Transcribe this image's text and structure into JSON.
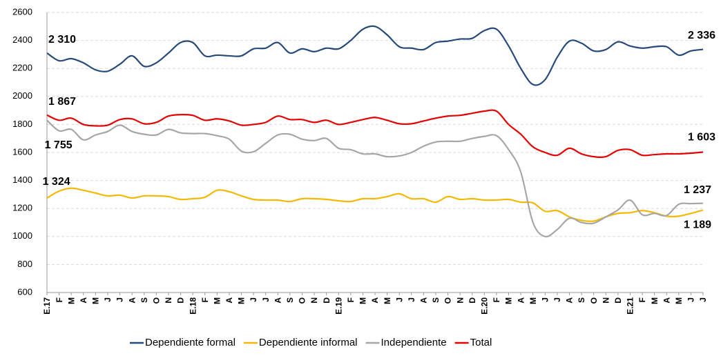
{
  "chart_data": {
    "type": "line",
    "categories": [
      "E.17",
      "F",
      "M",
      "A",
      "M",
      "J",
      "J",
      "A",
      "S",
      "O",
      "N",
      "D",
      "E.18",
      "F",
      "M",
      "A",
      "M",
      "J",
      "J",
      "A",
      "S",
      "O",
      "N",
      "D",
      "E.19",
      "F",
      "M",
      "A",
      "M",
      "J",
      "J",
      "A",
      "S",
      "O",
      "N",
      "D",
      "E.20",
      "F",
      "M",
      "A",
      "M",
      "J",
      "J",
      "A",
      "S",
      "O",
      "N",
      "D",
      "E.21",
      "F",
      "M",
      "A",
      "M",
      "J",
      "J"
    ],
    "ylim": [
      600,
      2600
    ],
    "yticks": [
      600,
      800,
      1000,
      1200,
      1400,
      1600,
      1800,
      2000,
      2200,
      2400,
      2600
    ],
    "grid": true,
    "series": [
      {
        "name": "Dependiente formal",
        "color": "#25497a",
        "values": [
          2310,
          2255,
          2270,
          2240,
          2190,
          2180,
          2230,
          2290,
          2215,
          2240,
          2310,
          2385,
          2385,
          2290,
          2295,
          2290,
          2290,
          2340,
          2345,
          2385,
          2310,
          2340,
          2320,
          2345,
          2340,
          2400,
          2480,
          2500,
          2440,
          2355,
          2345,
          2335,
          2385,
          2395,
          2410,
          2415,
          2470,
          2480,
          2360,
          2200,
          2085,
          2120,
          2280,
          2395,
          2380,
          2325,
          2335,
          2390,
          2360,
          2345,
          2355,
          2355,
          2295,
          2325,
          2336
        ],
        "value_labels": [
          "2 310",
          null,
          null,
          null,
          null,
          null,
          null,
          null,
          null,
          null,
          null,
          null,
          null,
          null,
          null,
          null,
          null,
          null,
          null,
          null,
          null,
          null,
          null,
          null,
          null,
          null,
          null,
          null,
          null,
          null,
          null,
          null,
          null,
          null,
          null,
          null,
          null,
          null,
          null,
          null,
          null,
          null,
          null,
          null,
          null,
          null,
          null,
          null,
          null,
          null,
          null,
          null,
          null,
          null,
          "2 336"
        ]
      },
      {
        "name": "Dependiente informal",
        "color": "#f5b800",
        "values": [
          1275,
          1324,
          1345,
          1330,
          1310,
          1290,
          1295,
          1275,
          1290,
          1290,
          1285,
          1265,
          1270,
          1280,
          1330,
          1320,
          1290,
          1265,
          1260,
          1260,
          1250,
          1270,
          1270,
          1265,
          1255,
          1250,
          1270,
          1270,
          1285,
          1305,
          1270,
          1270,
          1245,
          1285,
          1265,
          1270,
          1260,
          1260,
          1265,
          1245,
          1240,
          1180,
          1185,
          1140,
          1115,
          1110,
          1140,
          1165,
          1170,
          1185,
          1170,
          1145,
          1145,
          1165,
          1189
        ],
        "value_labels": [
          null,
          "1 324",
          null,
          null,
          null,
          null,
          null,
          null,
          null,
          null,
          null,
          null,
          null,
          null,
          null,
          null,
          null,
          null,
          null,
          null,
          null,
          null,
          null,
          null,
          null,
          null,
          null,
          null,
          null,
          null,
          null,
          null,
          null,
          null,
          null,
          null,
          null,
          null,
          null,
          null,
          null,
          null,
          null,
          null,
          null,
          null,
          null,
          null,
          null,
          null,
          null,
          null,
          null,
          null,
          "1 189"
        ]
      },
      {
        "name": "Independiente",
        "color": "#a6a6a6",
        "values": [
          1830,
          1755,
          1765,
          1690,
          1725,
          1750,
          1795,
          1750,
          1730,
          1725,
          1765,
          1740,
          1735,
          1735,
          1720,
          1695,
          1610,
          1605,
          1665,
          1725,
          1730,
          1695,
          1685,
          1700,
          1630,
          1620,
          1590,
          1590,
          1570,
          1575,
          1600,
          1645,
          1675,
          1680,
          1680,
          1700,
          1715,
          1720,
          1620,
          1460,
          1100,
          1000,
          1050,
          1130,
          1100,
          1095,
          1140,
          1190,
          1260,
          1155,
          1165,
          1150,
          1230,
          1235,
          1237
        ],
        "value_labels": [
          null,
          "1 755",
          null,
          null,
          null,
          null,
          null,
          null,
          null,
          null,
          null,
          null,
          null,
          null,
          null,
          null,
          null,
          null,
          null,
          null,
          null,
          null,
          null,
          null,
          null,
          null,
          null,
          null,
          null,
          null,
          null,
          null,
          null,
          null,
          null,
          null,
          null,
          null,
          null,
          null,
          null,
          null,
          null,
          null,
          null,
          null,
          null,
          null,
          null,
          null,
          null,
          null,
          null,
          null,
          "1 237"
        ]
      },
      {
        "name": "Total",
        "color": "#e30000",
        "values": [
          1867,
          1830,
          1845,
          1800,
          1790,
          1795,
          1835,
          1840,
          1805,
          1815,
          1860,
          1870,
          1865,
          1830,
          1840,
          1825,
          1795,
          1800,
          1815,
          1860,
          1835,
          1835,
          1815,
          1830,
          1800,
          1815,
          1835,
          1850,
          1830,
          1805,
          1805,
          1825,
          1845,
          1860,
          1865,
          1880,
          1895,
          1895,
          1800,
          1730,
          1640,
          1600,
          1580,
          1630,
          1590,
          1570,
          1570,
          1615,
          1620,
          1580,
          1585,
          1590,
          1590,
          1595,
          1603
        ],
        "value_labels": [
          "1 867",
          null,
          null,
          null,
          null,
          null,
          null,
          null,
          null,
          null,
          null,
          null,
          null,
          null,
          null,
          null,
          null,
          null,
          null,
          null,
          null,
          null,
          null,
          null,
          null,
          null,
          null,
          null,
          null,
          null,
          null,
          null,
          null,
          null,
          null,
          null,
          null,
          null,
          null,
          null,
          null,
          null,
          null,
          null,
          null,
          null,
          null,
          null,
          null,
          null,
          null,
          null,
          null,
          null,
          "1 603"
        ]
      }
    ]
  }
}
